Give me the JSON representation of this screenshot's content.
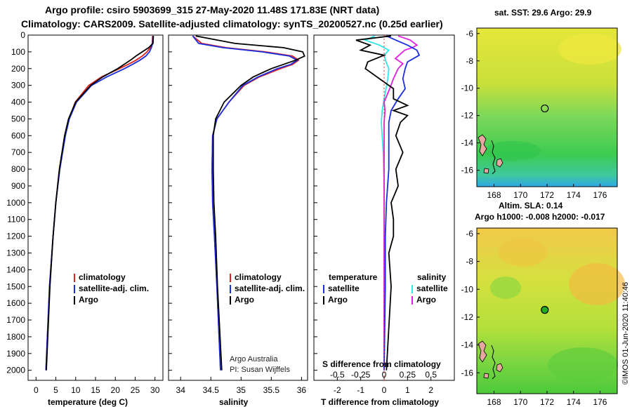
{
  "header": {
    "title_line1": "Argo profile: csiro 5903699_315 27-May-2020 11.48S 171.83E (NRT data)",
    "title_line2": "Climatology: CARS2009. Satellite-adjusted climatology: synTS_20200527.nc (0.25d earlier)"
  },
  "colors": {
    "climatology": "#e0201c",
    "satellite": "#1a2ee0",
    "argo": "#000000",
    "satellite_S": "#2ee6e6",
    "argo_S": "#e020e0"
  },
  "depth_axis": {
    "ticks": [
      0,
      100,
      200,
      300,
      400,
      500,
      600,
      700,
      800,
      900,
      1000,
      1100,
      1200,
      1300,
      1400,
      1500,
      1600,
      1700,
      1800,
      1900,
      2000
    ],
    "ylim": [
      0,
      2060
    ]
  },
  "chart_data": [
    {
      "type": "line",
      "id": "temperature",
      "xlabel": "temperature (deg C)",
      "ylabel": "",
      "xlim": [
        -2,
        32
      ],
      "xticks": [
        0,
        5,
        10,
        15,
        20,
        25,
        30
      ],
      "legend": [
        "climatology",
        "satellite-adj. clim.",
        "Argo"
      ],
      "series": [
        {
          "name": "climatology",
          "depth": [
            5,
            50,
            75,
            100,
            125,
            150,
            175,
            200,
            250,
            300,
            400,
            500,
            600,
            800,
            1000,
            1200,
            1500,
            2000
          ],
          "values": [
            29.4,
            29.3,
            28.8,
            28.0,
            26.8,
            25.2,
            23.2,
            21.0,
            16.5,
            13.3,
            9.9,
            8.3,
            7.3,
            5.9,
            5.0,
            4.3,
            3.4,
            2.5
          ]
        },
        {
          "name": "satellite-adj. clim.",
          "depth": [
            5,
            50,
            75,
            100,
            125,
            150,
            175,
            200,
            250,
            300,
            400,
            500,
            600,
            800,
            1000,
            1200,
            1500,
            2000
          ],
          "values": [
            29.5,
            29.4,
            29.1,
            28.6,
            27.7,
            26.2,
            24.3,
            22.3,
            17.8,
            14.0,
            10.2,
            8.4,
            7.4,
            6.0,
            5.0,
            4.3,
            3.4,
            2.5
          ]
        },
        {
          "name": "Argo",
          "depth": [
            5,
            50,
            75,
            100,
            125,
            150,
            175,
            200,
            250,
            300,
            400,
            500,
            600,
            800,
            1000,
            1200,
            1500,
            2000
          ],
          "values": [
            29.6,
            29.5,
            28.4,
            26.8,
            25.2,
            23.8,
            22.2,
            20.6,
            16.8,
            13.8,
            10.0,
            8.2,
            7.2,
            5.9,
            5.0,
            4.3,
            3.5,
            2.6
          ]
        }
      ]
    },
    {
      "type": "line",
      "id": "salinity",
      "xlabel": "salinity",
      "ylabel": "",
      "xlim": [
        33.8,
        36.1
      ],
      "xticks": [
        34,
        34.5,
        35,
        35.5,
        36
      ],
      "legend": [
        "climatology",
        "satellite-adj. clim.",
        "Argo"
      ],
      "series": [
        {
          "name": "climatology",
          "depth": [
            5,
            50,
            75,
            100,
            125,
            150,
            175,
            200,
            250,
            300,
            400,
            500,
            600,
            800,
            1000,
            1200,
            1500,
            2000
          ],
          "values": [
            34.2,
            34.35,
            34.75,
            35.4,
            35.85,
            35.95,
            35.85,
            35.65,
            35.3,
            35.05,
            34.8,
            34.6,
            34.53,
            34.52,
            34.53,
            34.56,
            34.6,
            34.66
          ]
        },
        {
          "name": "satellite-adj. clim.",
          "depth": [
            5,
            50,
            75,
            100,
            125,
            150,
            175,
            200,
            250,
            300,
            400,
            500,
            600,
            800,
            1000,
            1200,
            1500,
            2000
          ],
          "values": [
            34.2,
            34.3,
            34.7,
            35.35,
            35.8,
            35.93,
            35.82,
            35.6,
            35.28,
            35.03,
            34.8,
            34.6,
            34.53,
            34.52,
            34.53,
            34.56,
            34.6,
            34.66
          ]
        },
        {
          "name": "Argo",
          "depth": [
            5,
            50,
            75,
            100,
            125,
            150,
            175,
            200,
            250,
            300,
            400,
            500,
            600,
            800,
            1000,
            1200,
            1500,
            2000
          ],
          "values": [
            34.25,
            34.9,
            35.7,
            36.02,
            36.05,
            35.9,
            35.7,
            35.5,
            35.2,
            35.0,
            34.72,
            34.58,
            34.54,
            34.54,
            34.55,
            34.58,
            34.61,
            34.68
          ]
        }
      ],
      "annotation": [
        "Argo Australia",
        "PI: Susan Wijffels"
      ]
    },
    {
      "type": "line",
      "id": "difference",
      "xlabel": "T difference from climatology",
      "top_label": "S difference from climatology",
      "xlim": [
        -3,
        3
      ],
      "xticks": [
        -2,
        -1,
        0,
        1,
        2
      ],
      "top_xlim": [
        -0.75,
        0.75
      ],
      "top_xticks": [
        -0.5,
        -0.25,
        0,
        0.25,
        0.5
      ],
      "legend_title_T": "temperature",
      "legend_title_S": "salinity",
      "legend": [
        "satellite",
        "Argo",
        "satellite",
        "Argo"
      ],
      "series": [
        {
          "name": "T satellite",
          "axis": "T",
          "depth": [
            5,
            30,
            60,
            90,
            120,
            160,
            200,
            260,
            320,
            380,
            450,
            520,
            600,
            700,
            800,
            900,
            1000,
            1200,
            1500,
            2000
          ],
          "values": [
            0.1,
            0.5,
            1.0,
            1.4,
            1.5,
            1.0,
            0.9,
            0.8,
            0.9,
            0.6,
            0.3,
            0.2,
            0.2,
            0.2,
            0.2,
            0.15,
            0.1,
            0.05,
            0.05,
            0.0
          ]
        },
        {
          "name": "T Argo",
          "axis": "T",
          "depth": [
            5,
            30,
            60,
            90,
            120,
            160,
            200,
            260,
            320,
            380,
            420,
            450,
            480,
            520,
            600,
            700,
            800,
            900,
            1000,
            1100,
            1200,
            1300,
            1500,
            2000
          ],
          "values": [
            0.3,
            -1.2,
            -0.6,
            -1.0,
            0.0,
            -0.7,
            -0.8,
            -0.2,
            0.4,
            0.4,
            1.0,
            0.4,
            1.0,
            0.7,
            0.5,
            0.8,
            0.5,
            0.6,
            0.3,
            0.4,
            0.4,
            0.2,
            0.3,
            0.1
          ]
        },
        {
          "name": "S satellite",
          "axis": "S",
          "depth": [
            5,
            30,
            60,
            90,
            120,
            160,
            200,
            260,
            320,
            380,
            450,
            520,
            600,
            700,
            900,
            1200,
            1500,
            2000
          ],
          "values": [
            -0.1,
            -0.2,
            -0.05,
            0.05,
            0.0,
            0.02,
            0.05,
            0.04,
            0.02,
            0.0,
            -0.02,
            -0.03,
            -0.02,
            -0.01,
            0.0,
            0.0,
            0.0,
            0.0
          ]
        },
        {
          "name": "S Argo",
          "axis": "S",
          "depth": [
            5,
            30,
            60,
            75,
            90,
            110,
            140,
            170,
            200,
            260,
            320,
            360,
            400,
            450,
            520,
            600,
            700,
            900,
            1200,
            1500,
            2000
          ],
          "values": [
            0.15,
            0.28,
            0.35,
            0.3,
            0.22,
            0.18,
            0.12,
            0.2,
            0.15,
            0.1,
            0.06,
            0.03,
            0.0,
            0.01,
            0.0,
            0.0,
            0.0,
            0.0,
            0.0,
            0.0,
            0.0
          ]
        }
      ]
    }
  ],
  "maps": [
    {
      "id": "sst",
      "title": "sat. SST: 29.6 Argo: 29.9",
      "xticks": [
        "168",
        "170",
        "172",
        "174",
        "176"
      ],
      "yticks": [
        "-6",
        "-8",
        "-10",
        "-12",
        "-14",
        "-16"
      ],
      "marker_lon": 171.83,
      "marker_lat": -11.48,
      "marker_fill": "none"
    },
    {
      "id": "sla",
      "title_a": "Altim. SLA: 0.14",
      "title_b": "Argo h1000: -0.008 h2000: -0.017",
      "xticks": [
        "168",
        "170",
        "172",
        "174",
        "176"
      ],
      "yticks": [
        "-6",
        "-8",
        "-10",
        "-12",
        "-14",
        "-16"
      ],
      "marker_lon": 171.83,
      "marker_lat": -11.48,
      "marker_fill": "#22aa22"
    }
  ],
  "footer": {
    "stamp": "©IMOS 01-Jun-2020 11:40:46"
  }
}
